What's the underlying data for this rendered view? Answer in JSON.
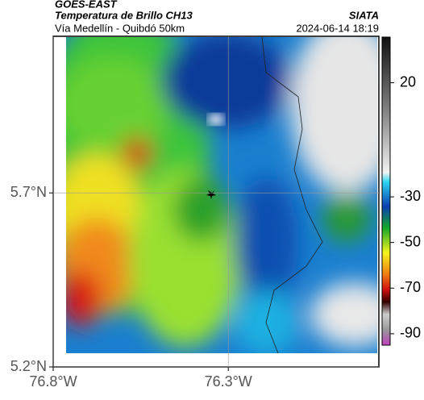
{
  "chart_data": {
    "type": "map",
    "title": "GOES-EAST",
    "subtitle": "Temperatura de Brillo CH13",
    "source": "SIATA",
    "region": "Vía Medellín - Quibdó 50km",
    "date": "2024-06-14 18:19",
    "xlim": [
      -76.8,
      -75.87
    ],
    "ylim": [
      5.2,
      6.15
    ],
    "xticks": [
      {
        "value": -76.8,
        "label": "76.8°W"
      },
      {
        "value": -76.3,
        "label": "76.3°W"
      }
    ],
    "yticks": [
      {
        "value": 5.2,
        "label": "5.2°N"
      },
      {
        "value": 5.7,
        "label": "5.7°N"
      }
    ],
    "grid": true,
    "colorbar": {
      "lim": [
        -95,
        40
      ],
      "ticks": [
        20,
        -30,
        -50,
        -70,
        -90
      ]
    }
  }
}
